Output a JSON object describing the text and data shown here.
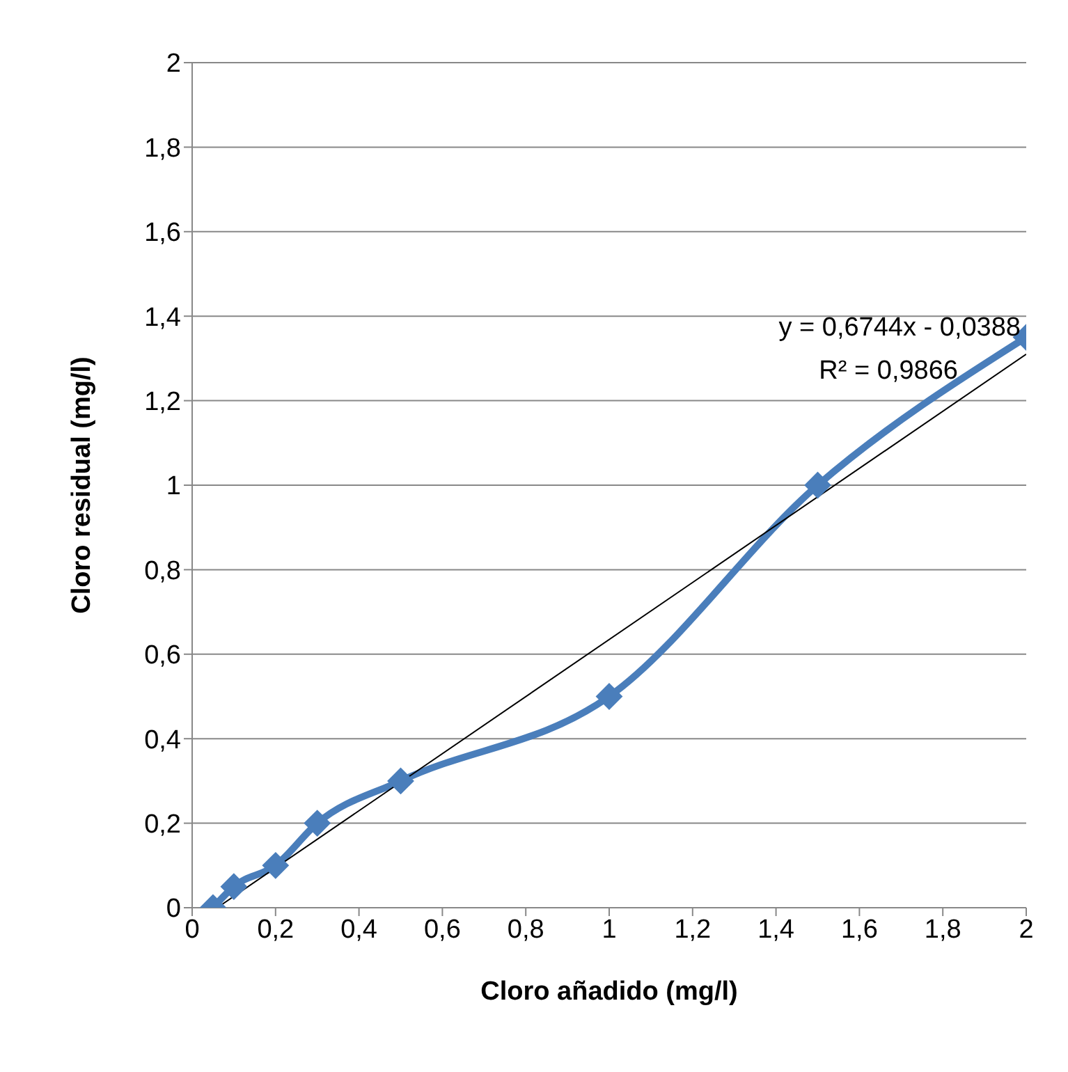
{
  "chart_data": {
    "type": "line",
    "xlabel": "Cloro añadido (mg/l)",
    "ylabel": "Cloro residual (mg/l)",
    "series": [
      {
        "color": "#4a7ebb",
        "x": [
          0.05,
          0.1,
          0.2,
          0.3,
          0.5,
          1,
          1.5,
          2
        ],
        "values": [
          0,
          0.05,
          0.1,
          0.2,
          0.3,
          0.5,
          1,
          1.35
        ],
        "marker": "diamond"
      },
      {
        "color": "#000000",
        "x": [
          0.06,
          2
        ],
        "values": [
          0,
          1.31
        ],
        "marker": "none"
      }
    ],
    "xlim": [
      0,
      2
    ],
    "xticks": [
      0,
      {
        "value": 0.2,
        "label": "0,2"
      },
      {
        "value": 0.4,
        "label": "0,4"
      },
      {
        "value": 0.6,
        "label": "0,6"
      },
      {
        "value": 0.8,
        "label": "0,8"
      },
      1,
      {
        "value": 1.2,
        "label": "1,2"
      },
      {
        "value": 1.4,
        "label": "1,4"
      },
      {
        "value": 1.6,
        "label": "1,6"
      },
      {
        "value": 1.8,
        "label": "1,8"
      },
      2
    ],
    "ylim": [
      0,
      2
    ],
    "yticks": [
      0,
      {
        "value": 0.2,
        "label": "0,2"
      },
      {
        "value": 0.4,
        "label": "0,4"
      },
      {
        "value": 0.6,
        "label": "0,6"
      },
      {
        "value": 0.8,
        "label": "0,8"
      },
      1,
      {
        "value": 1.2,
        "label": "1,2"
      },
      {
        "value": 1.4,
        "label": "1,4"
      },
      {
        "value": 1.6,
        "label": "1,6"
      },
      {
        "value": 1.8,
        "label": "1,8"
      },
      2
    ],
    "grid": "y",
    "legend": false,
    "annotations": [
      "y = 0,6744x - 0,0388",
      "R² = 0,9866"
    ]
  }
}
